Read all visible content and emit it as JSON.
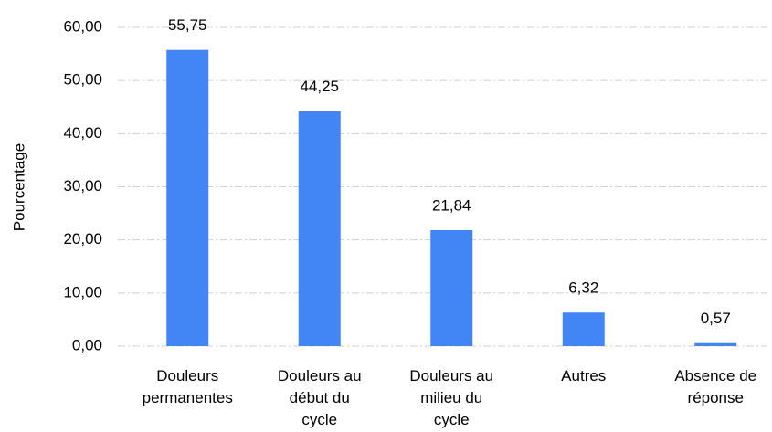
{
  "chart_data": {
    "type": "bar",
    "y_label": "Pourcentage",
    "categories": [
      "Douleurs permanentes",
      "Douleurs au début du cycle",
      "Douleurs au milieu du cycle",
      "Autres",
      "Absence de réponse"
    ],
    "values": [
      55.75,
      44.25,
      21.84,
      6.32,
      0.57
    ],
    "value_labels": [
      "55,75",
      "44,25",
      "21,84",
      "6,32",
      "0,57"
    ],
    "color": "#4285f4",
    "ylim": [
      0,
      60
    ],
    "yticks": [
      {
        "value": 0,
        "label": "0,00"
      },
      {
        "value": 10,
        "label": "10,00"
      },
      {
        "value": 20,
        "label": "20,00"
      },
      {
        "value": 30,
        "label": "30,00"
      },
      {
        "value": 40,
        "label": "40,00"
      },
      {
        "value": 50,
        "label": "50,00"
      },
      {
        "value": 60,
        "label": "60,00"
      }
    ],
    "grid": true
  }
}
